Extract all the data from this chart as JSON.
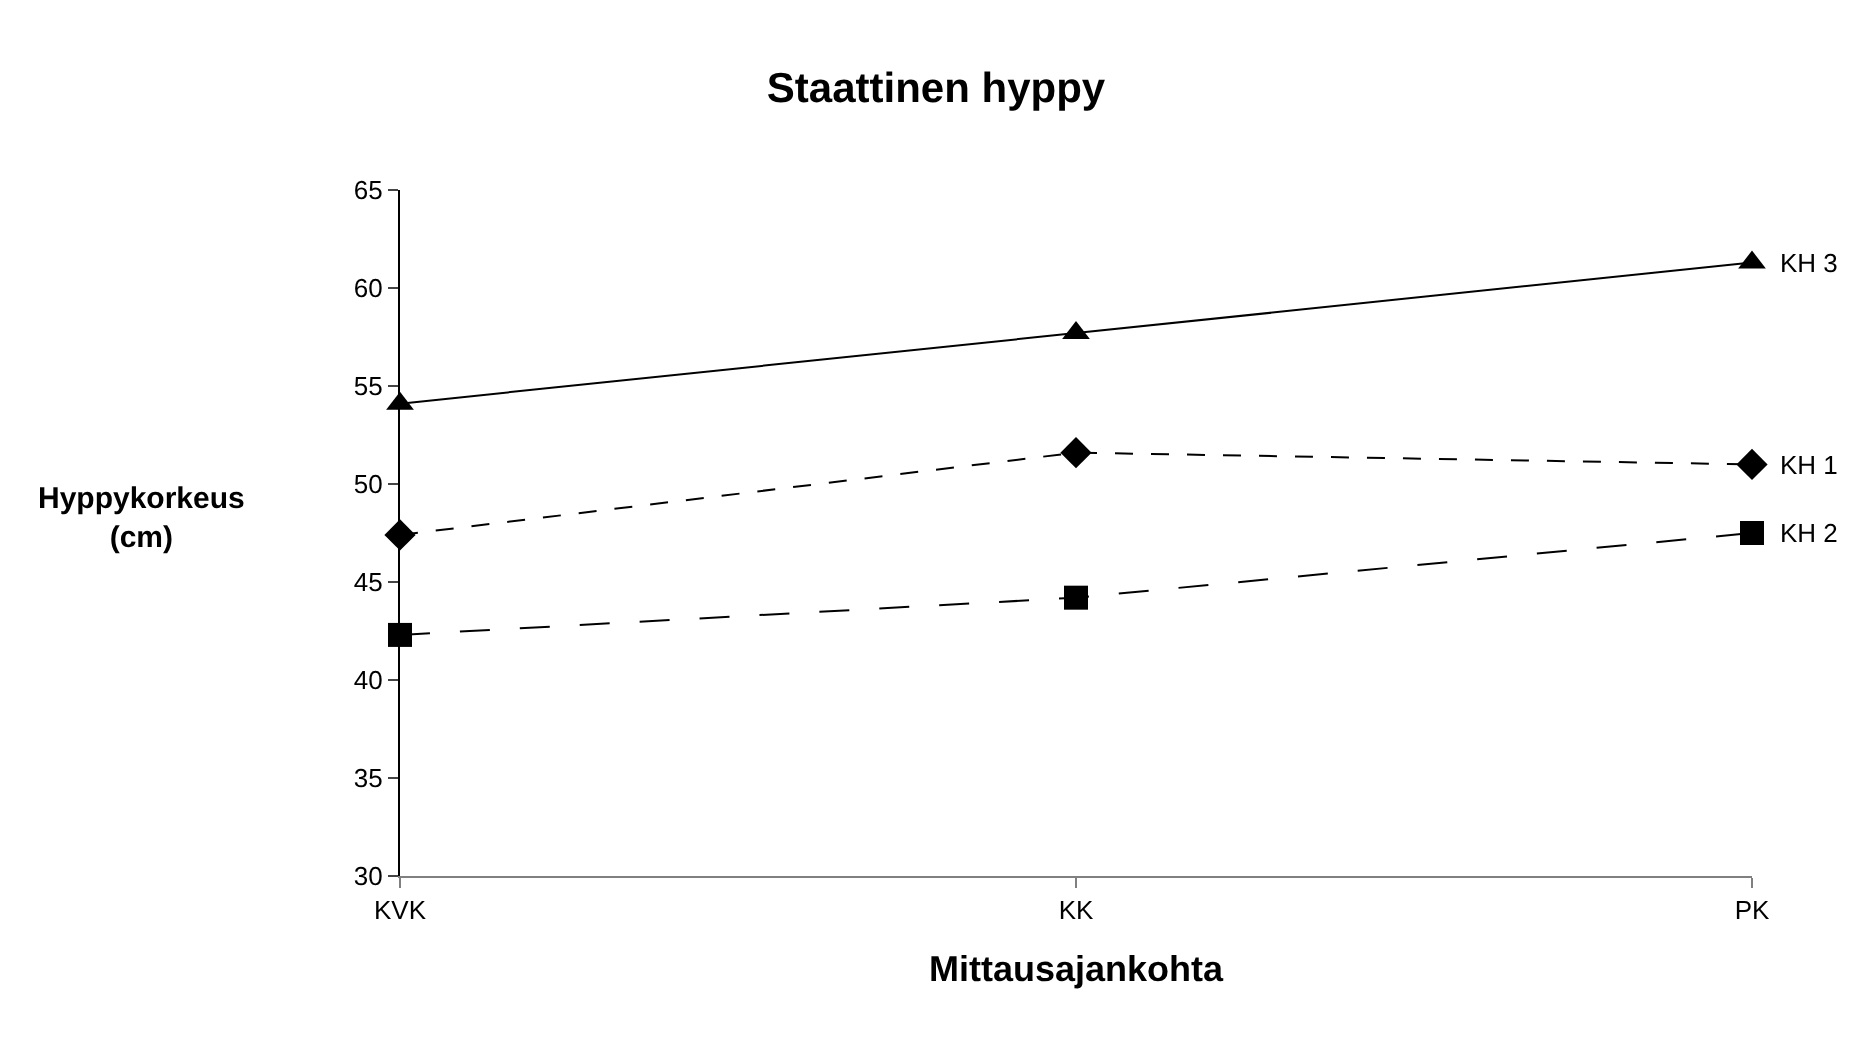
{
  "chart_data": {
    "type": "line",
    "title": "Staattinen hyppy",
    "xlabel": "Mittausajankohta",
    "ylabel": "Hyppykorkeus\n(cm)",
    "categories": [
      "KVK",
      "KK",
      "PK"
    ],
    "series": [
      {
        "name": "KH 1",
        "color": "#000000",
        "values": [
          47.4,
          51.6,
          51.0
        ],
        "marker": "diamond",
        "line_style": "dashed"
      },
      {
        "name": "KH 2",
        "color": "#000000",
        "values": [
          42.3,
          44.2,
          47.5
        ],
        "marker": "square",
        "line_style": "longdash"
      },
      {
        "name": "KH 3",
        "color": "#000000",
        "values": [
          54.1,
          57.7,
          61.3
        ],
        "marker": "triangle",
        "line_style": "solid"
      }
    ],
    "ylim": [
      30,
      65
    ],
    "yticks": [
      30,
      35,
      40,
      45,
      50,
      55,
      60,
      65
    ],
    "grid": false,
    "legend": false
  }
}
